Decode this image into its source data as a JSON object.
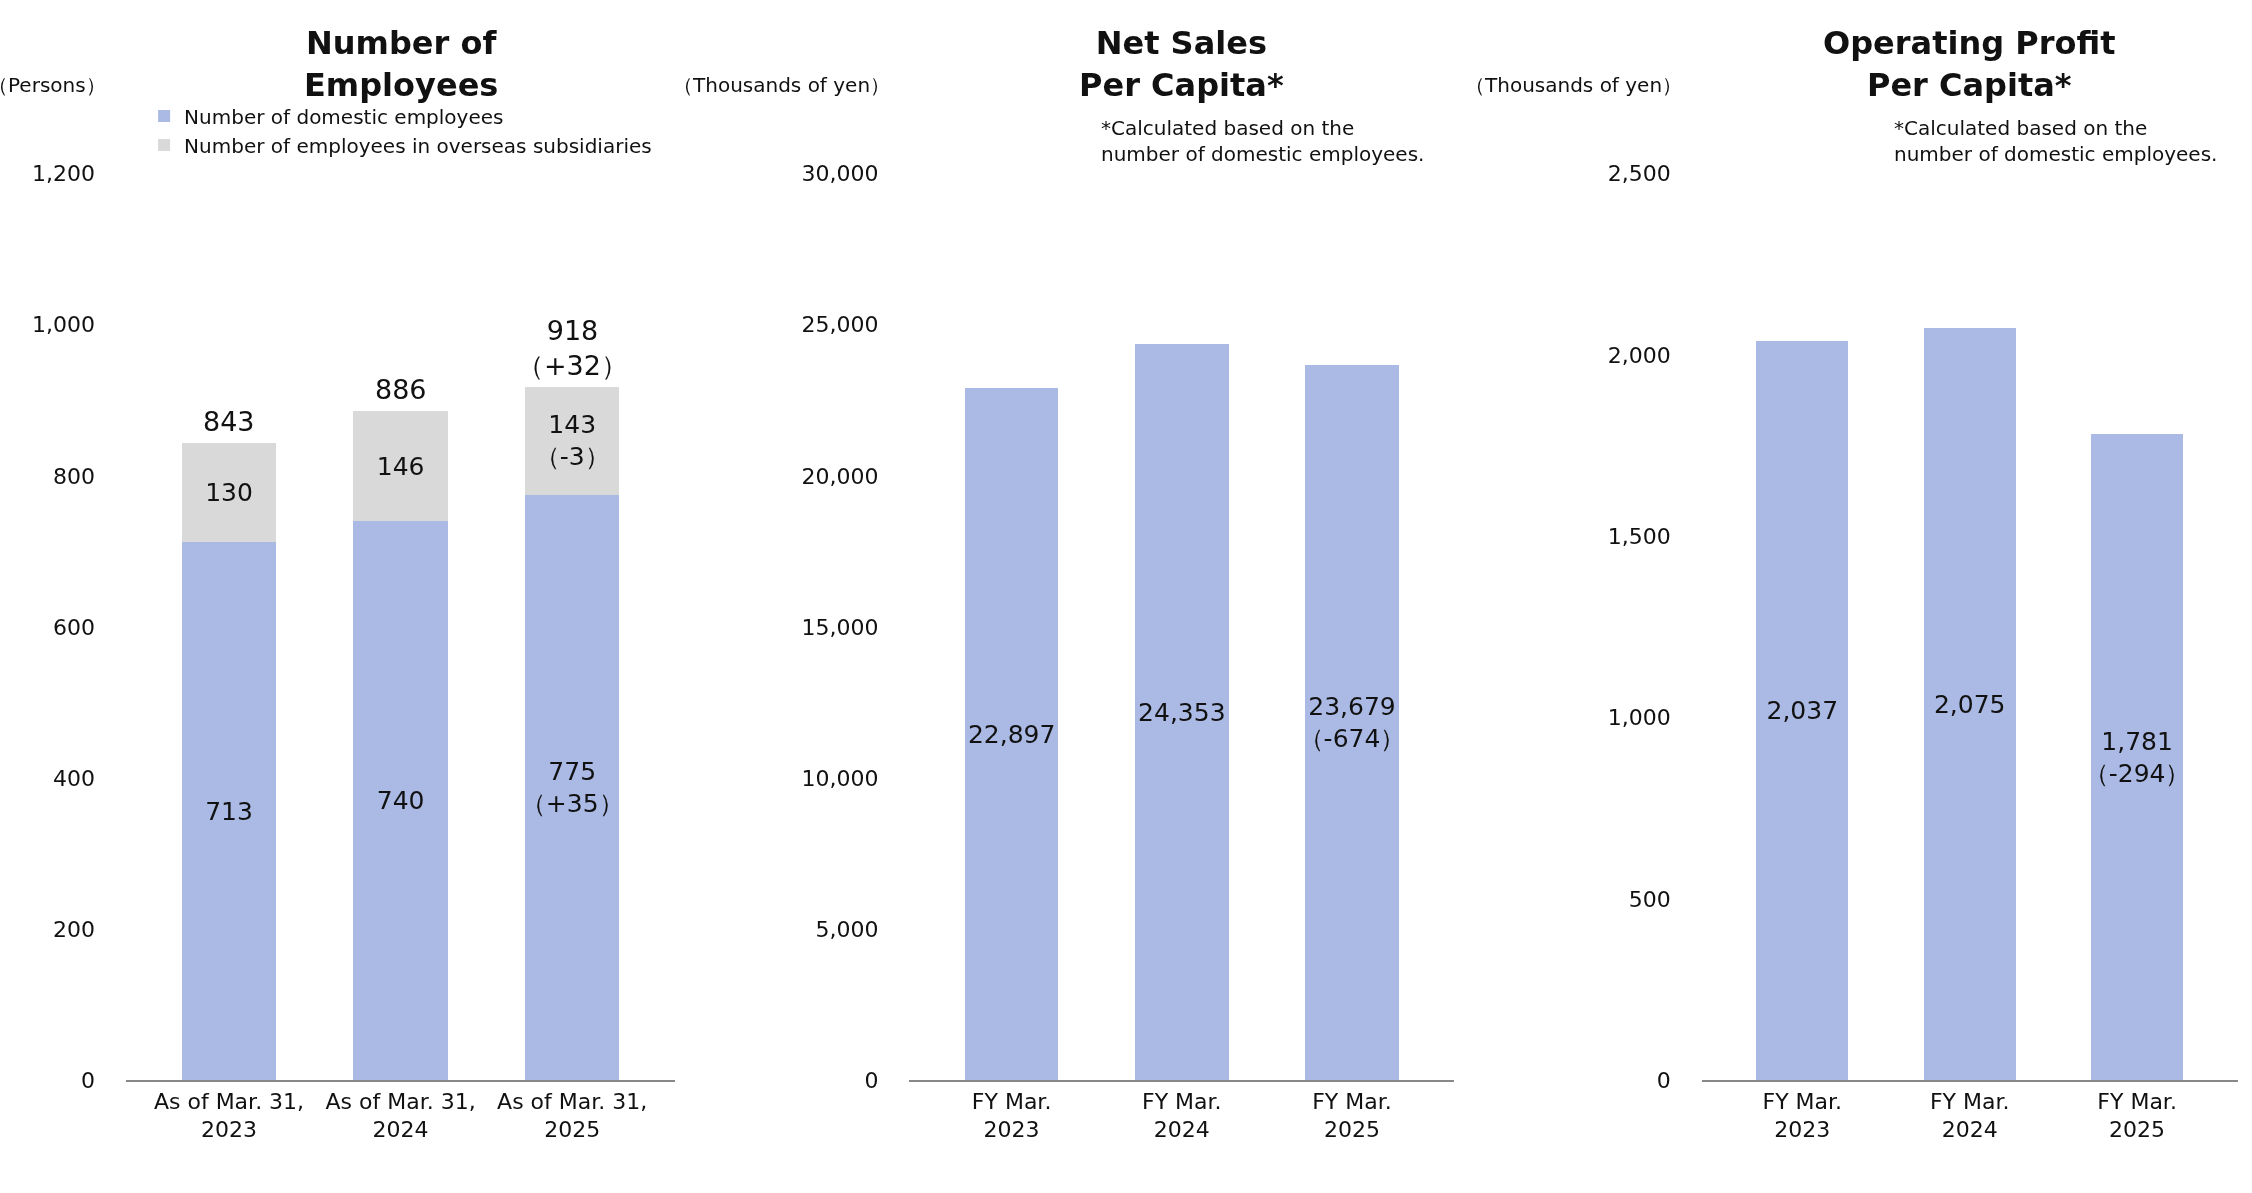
{
  "chart_data": [
    {
      "type": "bar",
      "title": "Number of\nEmployees",
      "ylabel": "（Persons）",
      "stacked": true,
      "legend": "top",
      "categories": [
        "As of Mar. 31,\n2023",
        "As of Mar. 31,\n2024",
        "As of Mar. 31,\n2025"
      ],
      "series": [
        {
          "name": "Number of domestic employees",
          "color": "#abbae4",
          "values": [
            713,
            740,
            775
          ],
          "value_labels": [
            "713",
            "740",
            "775\n（+35）"
          ]
        },
        {
          "name": "Number of employees in overseas subsidiaries",
          "color": "#d9d9d9",
          "values": [
            130,
            146,
            143
          ],
          "value_labels": [
            "130",
            "146",
            "143\n（-3）"
          ]
        }
      ],
      "totals": [
        "843",
        "886",
        "918\n（+32）"
      ],
      "ylim": [
        0,
        1200
      ],
      "yticks": [
        0,
        200,
        400,
        600,
        800,
        {
          "value": 1000,
          "label": "1,000"
        },
        {
          "value": 1200,
          "label": "1,200"
        }
      ],
      "grid": false
    },
    {
      "type": "bar",
      "title": "Net Sales\nPer Capita*",
      "ylabel": "（Thousands of yen）",
      "annotations": [
        "*Calculated based on the\nnumber of domestic employees."
      ],
      "categories": [
        "FY Mar.\n2023",
        "FY Mar.\n2024",
        "FY Mar.\n2025"
      ],
      "series": [
        {
          "color": "#abbae4",
          "values": [
            22897,
            24353,
            23679
          ],
          "value_labels": [
            "22,897",
            "24,353",
            "23,679\n（-674）"
          ]
        }
      ],
      "ylim": [
        0,
        30000
      ],
      "yticks": [
        0,
        {
          "value": 5000,
          "label": "5,000"
        },
        {
          "value": 10000,
          "label": "10,000"
        },
        {
          "value": 15000,
          "label": "15,000"
        },
        {
          "value": 20000,
          "label": "20,000"
        },
        {
          "value": 25000,
          "label": "25,000"
        },
        {
          "value": 30000,
          "label": "30,000"
        }
      ],
      "grid": false
    },
    {
      "type": "bar",
      "title": "Operating Profit\nPer Capita*",
      "ylabel": "（Thousands of yen）",
      "annotations": [
        "*Calculated based on the\nnumber of domestic employees."
      ],
      "categories": [
        "FY Mar.\n2023",
        "FY Mar.\n2024",
        "FY Mar.\n2025"
      ],
      "series": [
        {
          "color": "#abbae4",
          "values": [
            2037,
            2075,
            1781
          ],
          "value_labels": [
            "2,037",
            "2,075",
            "1,781\n（-294）"
          ]
        }
      ],
      "ylim": [
        0,
        2500
      ],
      "yticks": [
        0,
        500,
        {
          "value": 1000,
          "label": "1,000"
        },
        {
          "value": 1500,
          "label": "1,500"
        },
        {
          "value": 2000,
          "label": "2,000"
        },
        {
          "value": 2500,
          "label": "2,500"
        }
      ],
      "grid": false
    }
  ]
}
